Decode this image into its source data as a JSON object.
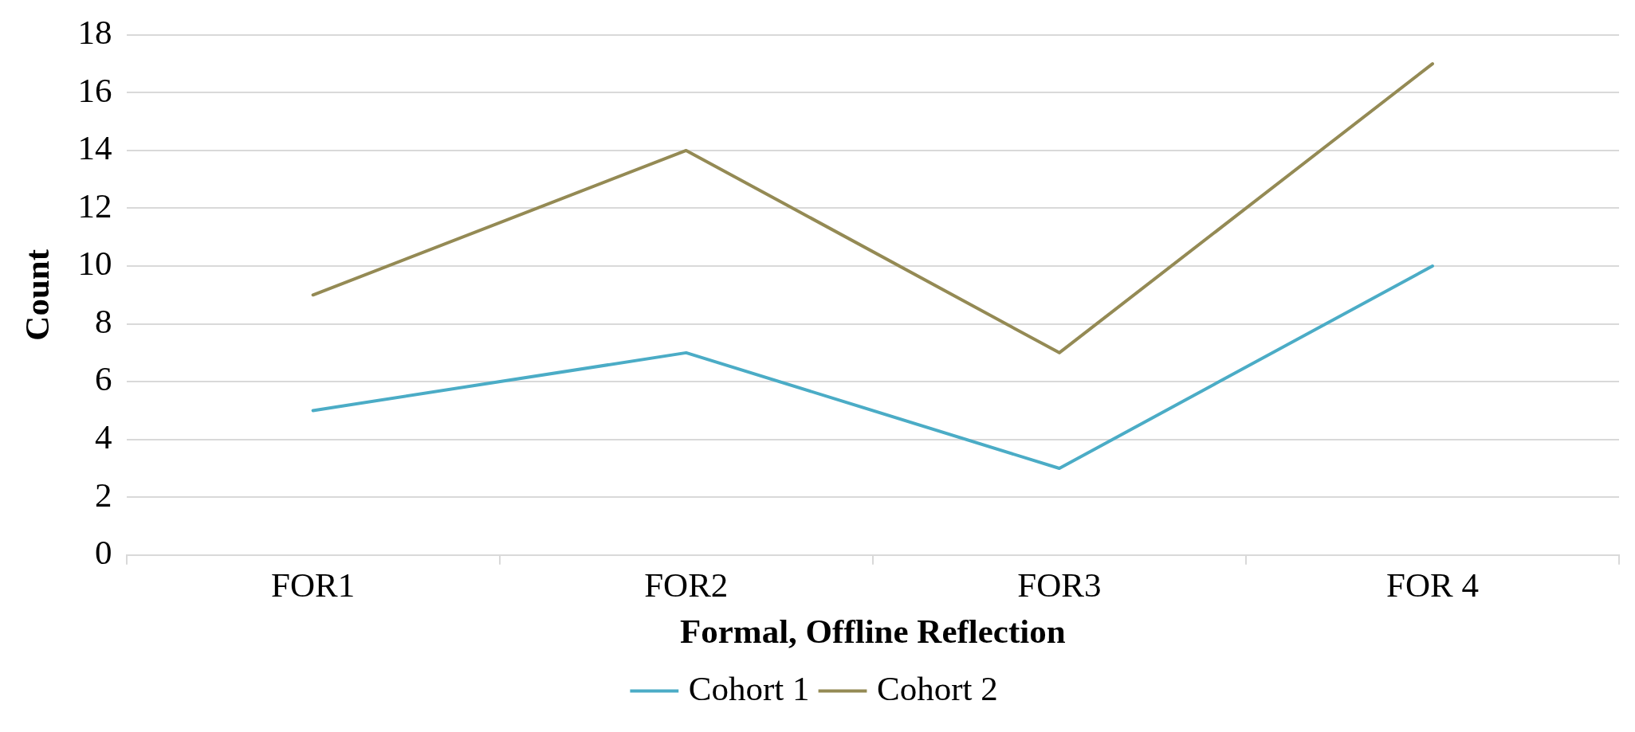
{
  "chart_data": {
    "type": "line",
    "xlabel": "Formal, Offline Reflection",
    "ylabel": "Count",
    "categories": [
      "FOR1",
      "FOR2",
      "FOR3",
      "FOR 4"
    ],
    "series": [
      {
        "name": "Cohort 1",
        "color": "#4bacc6",
        "values": [
          5,
          7,
          3,
          10
        ]
      },
      {
        "name": "Cohort 2",
        "color": "#948a54",
        "values": [
          9,
          14,
          7,
          17
        ]
      }
    ],
    "ylim": [
      0,
      18
    ],
    "yticks": [
      0,
      2,
      4,
      6,
      8,
      10,
      12,
      14,
      16,
      18
    ],
    "grid": "y",
    "legend": "bottom",
    "marker": "none",
    "line_style": "solid"
  }
}
